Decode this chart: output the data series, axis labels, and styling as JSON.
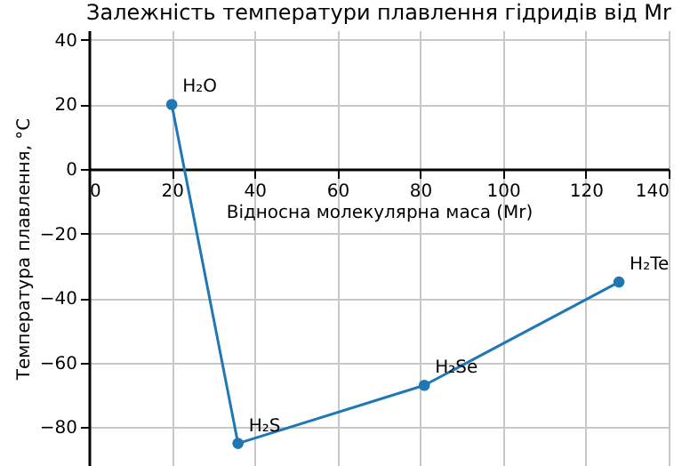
{
  "chart_data": {
    "type": "line",
    "title": "Залежність температури плавлення гідридів від Mr",
    "xlabel": "Відносна молекулярна маса (Mr)",
    "ylabel": "Температура плавлення, °C",
    "x": [
      20,
      36,
      81,
      128
    ],
    "series": [
      {
        "color": "#1f77b4",
        "values": [
          20,
          -85,
          -67,
          -35
        ]
      }
    ],
    "annotations": [
      {
        "text": "H₂O",
        "x": 20,
        "y": 20
      },
      {
        "text": "H₂S",
        "x": 36,
        "y": -85
      },
      {
        "text": "H₂Se",
        "x": 81,
        "y": -67
      },
      {
        "text": "H₂Te",
        "x": 128,
        "y": -35
      }
    ],
    "xlim": [
      0,
      140
    ],
    "xticks": [
      0,
      20,
      40,
      60,
      80,
      100,
      120,
      140
    ],
    "ylim": [
      -92,
      43
    ],
    "yticks": [
      {
        "value": -80,
        "label": "−80"
      },
      {
        "value": -60,
        "label": "−60"
      },
      {
        "value": -40,
        "label": "−40"
      },
      {
        "value": -20,
        "label": "−20"
      },
      0,
      20,
      40
    ],
    "grid": true,
    "marker": "circle",
    "line_style": "solid"
  }
}
